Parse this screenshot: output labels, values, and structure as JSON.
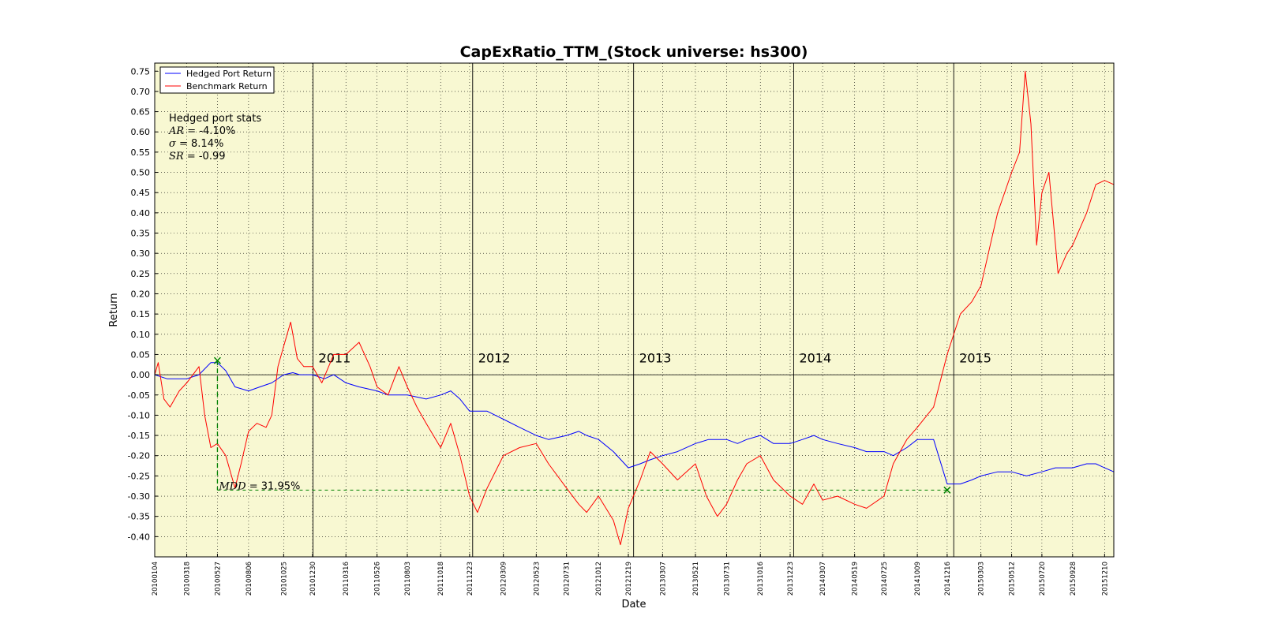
{
  "chart_data": {
    "type": "line",
    "title": "CapExRatio_TTM_(Stock universe: hs300)",
    "xlabel": "Date",
    "ylabel": "Return",
    "ylim": [
      -0.45,
      0.77
    ],
    "yticks": [
      0.75,
      0.7,
      0.65,
      0.6,
      0.55,
      0.5,
      0.45,
      0.4,
      0.35,
      0.3,
      0.25,
      0.2,
      0.15,
      0.1,
      0.05,
      0.0,
      -0.05,
      -0.1,
      -0.15,
      -0.2,
      -0.25,
      -0.3,
      -0.35,
      -0.4
    ],
    "xticks": [
      "20100104",
      "20100318",
      "20100527",
      "20100806",
      "20101025",
      "20101230",
      "20110316",
      "20110526",
      "20110803",
      "20111018",
      "20111223",
      "20120309",
      "20120523",
      "20120731",
      "20121012",
      "20121219",
      "20130307",
      "20130521",
      "20130731",
      "20131016",
      "20131223",
      "20140307",
      "20140519",
      "20140725",
      "20141009",
      "20141216",
      "20150303",
      "20150512",
      "20150720",
      "20150928",
      "20151210"
    ],
    "xrange": [
      "20100104",
      "20151231"
    ],
    "grid": true,
    "background_color": "#f8f8d2",
    "legend_position": "top-left",
    "year_markers": [
      {
        "label": "2011",
        "date": "20101231"
      },
      {
        "label": "2012",
        "date": "20111230"
      },
      {
        "label": "2013",
        "date": "20121231"
      },
      {
        "label": "2014",
        "date": "20131231"
      },
      {
        "label": "2015",
        "date": "20141231"
      }
    ],
    "series": [
      {
        "name": "Hedged Port Return",
        "color": "#0000ff",
        "points": [
          [
            "20100104",
            0.0
          ],
          [
            "20100201",
            -0.01
          ],
          [
            "20100301",
            -0.01
          ],
          [
            "20100318",
            -0.01
          ],
          [
            "20100415",
            0.0
          ],
          [
            "20100512",
            0.03
          ],
          [
            "20100527",
            0.03
          ],
          [
            "20100615",
            0.01
          ],
          [
            "20100706",
            -0.03
          ],
          [
            "20100806",
            -0.04
          ],
          [
            "20100901",
            -0.03
          ],
          [
            "20100928",
            -0.02
          ],
          [
            "20101025",
            0.0
          ],
          [
            "20101115",
            0.005
          ],
          [
            "20101201",
            0.0
          ],
          [
            "20101230",
            0.0
          ],
          [
            "20110126",
            -0.01
          ],
          [
            "20110216",
            0.0
          ],
          [
            "20110316",
            -0.02
          ],
          [
            "20110415",
            -0.03
          ],
          [
            "20110526",
            -0.04
          ],
          [
            "20110620",
            -0.05
          ],
          [
            "20110715",
            -0.05
          ],
          [
            "20110803",
            -0.05
          ],
          [
            "20110915",
            -0.06
          ],
          [
            "20111018",
            -0.05
          ],
          [
            "20111110",
            -0.04
          ],
          [
            "20111201",
            -0.06
          ],
          [
            "20111223",
            -0.09
          ],
          [
            "20120110",
            -0.09
          ],
          [
            "20120201",
            -0.09
          ],
          [
            "20120309",
            -0.11
          ],
          [
            "20120415",
            -0.13
          ],
          [
            "20120523",
            -0.15
          ],
          [
            "20120620",
            -0.16
          ],
          [
            "20120731",
            -0.15
          ],
          [
            "20120828",
            -0.14
          ],
          [
            "20120915",
            -0.15
          ],
          [
            "20121012",
            -0.16
          ],
          [
            "20121115",
            -0.19
          ],
          [
            "20121219",
            -0.23
          ],
          [
            "20130115",
            -0.22
          ],
          [
            "20130207",
            -0.21
          ],
          [
            "20130307",
            -0.2
          ],
          [
            "20130410",
            -0.19
          ],
          [
            "20130521",
            -0.17
          ],
          [
            "20130620",
            -0.16
          ],
          [
            "20130731",
            -0.16
          ],
          [
            "20130825",
            -0.17
          ],
          [
            "20130915",
            -0.16
          ],
          [
            "20131016",
            -0.15
          ],
          [
            "20131115",
            -0.17
          ],
          [
            "20131223",
            -0.17
          ],
          [
            "20140120",
            -0.16
          ],
          [
            "20140215",
            -0.15
          ],
          [
            "20140307",
            -0.16
          ],
          [
            "20140410",
            -0.17
          ],
          [
            "20140519",
            -0.18
          ],
          [
            "20140615",
            -0.19
          ],
          [
            "20140725",
            -0.19
          ],
          [
            "20140815",
            -0.2
          ],
          [
            "20140915",
            -0.18
          ],
          [
            "20141009",
            -0.16
          ],
          [
            "20141115",
            -0.16
          ],
          [
            "20141216",
            -0.27
          ],
          [
            "20150115",
            -0.27
          ],
          [
            "20150210",
            -0.26
          ],
          [
            "20150303",
            -0.25
          ],
          [
            "20150410",
            -0.24
          ],
          [
            "20150512",
            -0.24
          ],
          [
            "20150615",
            -0.25
          ],
          [
            "20150720",
            -0.24
          ],
          [
            "20150820",
            -0.23
          ],
          [
            "20150928",
            -0.23
          ],
          [
            "20151030",
            -0.22
          ],
          [
            "20151120",
            -0.22
          ],
          [
            "20151210",
            -0.23
          ],
          [
            "20151231",
            -0.24
          ]
        ]
      },
      {
        "name": "Benchmark Return",
        "color": "#ff0000",
        "points": [
          [
            "20100104",
            0.0
          ],
          [
            "20100112",
            0.03
          ],
          [
            "20100125",
            -0.06
          ],
          [
            "20100208",
            -0.08
          ],
          [
            "20100301",
            -0.04
          ],
          [
            "20100318",
            -0.02
          ],
          [
            "20100415",
            0.02
          ],
          [
            "20100428",
            -0.1
          ],
          [
            "20100512",
            -0.18
          ],
          [
            "20100527",
            -0.17
          ],
          [
            "20100615",
            -0.2
          ],
          [
            "20100706",
            -0.28
          ],
          [
            "20100720",
            -0.22
          ],
          [
            "20100806",
            -0.14
          ],
          [
            "20100825",
            -0.12
          ],
          [
            "20100915",
            -0.13
          ],
          [
            "20100928",
            -0.1
          ],
          [
            "20101012",
            0.02
          ],
          [
            "20101025",
            0.07
          ],
          [
            "20101110",
            0.13
          ],
          [
            "20101125",
            0.04
          ],
          [
            "20101210",
            0.02
          ],
          [
            "20101230",
            0.02
          ],
          [
            "20110120",
            -0.02
          ],
          [
            "20110216",
            0.05
          ],
          [
            "20110316",
            0.05
          ],
          [
            "20110415",
            0.08
          ],
          [
            "20110510",
            0.02
          ],
          [
            "20110526",
            -0.03
          ],
          [
            "20110620",
            -0.05
          ],
          [
            "20110715",
            0.02
          ],
          [
            "20110803",
            -0.03
          ],
          [
            "20110825",
            -0.08
          ],
          [
            "20110915",
            -0.12
          ],
          [
            "20111018",
            -0.18
          ],
          [
            "20111110",
            -0.12
          ],
          [
            "20111201",
            -0.2
          ],
          [
            "20111223",
            -0.3
          ],
          [
            "20120110",
            -0.34
          ],
          [
            "20120201",
            -0.28
          ],
          [
            "20120309",
            -0.2
          ],
          [
            "20120415",
            -0.18
          ],
          [
            "20120523",
            -0.17
          ],
          [
            "20120620",
            -0.22
          ],
          [
            "20120731",
            -0.28
          ],
          [
            "20120828",
            -0.32
          ],
          [
            "20120915",
            -0.34
          ],
          [
            "20121012",
            -0.3
          ],
          [
            "20121115",
            -0.36
          ],
          [
            "20121201",
            -0.42
          ],
          [
            "20121219",
            -0.33
          ],
          [
            "20130115",
            -0.26
          ],
          [
            "20130207",
            -0.19
          ],
          [
            "20130307",
            -0.22
          ],
          [
            "20130410",
            -0.26
          ],
          [
            "20130521",
            -0.22
          ],
          [
            "20130615",
            -0.3
          ],
          [
            "20130710",
            -0.35
          ],
          [
            "20130731",
            -0.32
          ],
          [
            "20130825",
            -0.26
          ],
          [
            "20130915",
            -0.22
          ],
          [
            "20131016",
            -0.2
          ],
          [
            "20131115",
            -0.26
          ],
          [
            "20131223",
            -0.3
          ],
          [
            "20140120",
            -0.32
          ],
          [
            "20140215",
            -0.27
          ],
          [
            "20140307",
            -0.31
          ],
          [
            "20140410",
            -0.3
          ],
          [
            "20140519",
            -0.32
          ],
          [
            "20140615",
            -0.33
          ],
          [
            "20140725",
            -0.3
          ],
          [
            "20140815",
            -0.22
          ],
          [
            "20140915",
            -0.16
          ],
          [
            "20141009",
            -0.13
          ],
          [
            "20141115",
            -0.08
          ],
          [
            "20141216",
            0.05
          ],
          [
            "20150115",
            0.15
          ],
          [
            "20150210",
            0.18
          ],
          [
            "20150303",
            0.22
          ],
          [
            "20150410",
            0.4
          ],
          [
            "20150512",
            0.5
          ],
          [
            "20150530",
            0.55
          ],
          [
            "20150612",
            0.75
          ],
          [
            "20150625",
            0.62
          ],
          [
            "20150708",
            0.32
          ],
          [
            "20150720",
            0.45
          ],
          [
            "20150805",
            0.5
          ],
          [
            "20150826",
            0.25
          ],
          [
            "20150915",
            0.3
          ],
          [
            "20150928",
            0.32
          ],
          [
            "20151030",
            0.4
          ],
          [
            "20151120",
            0.47
          ],
          [
            "20151210",
            0.48
          ],
          [
            "20151231",
            0.47
          ]
        ]
      }
    ],
    "stats": {
      "title": "Hedged port stats",
      "ar_label": "AR = ",
      "ar_value": "-4.10%",
      "sigma_label": "σ = ",
      "sigma_value": "8.14%",
      "sr_label": "SR = ",
      "sr_value": "-0.99"
    },
    "max_drawdown": {
      "label": "MDD = ",
      "value": "31.95%",
      "peak": {
        "date": "20100527",
        "value": 0.035
      },
      "trough": {
        "date": "20141216",
        "value": -0.285
      },
      "color": "#008000"
    }
  }
}
